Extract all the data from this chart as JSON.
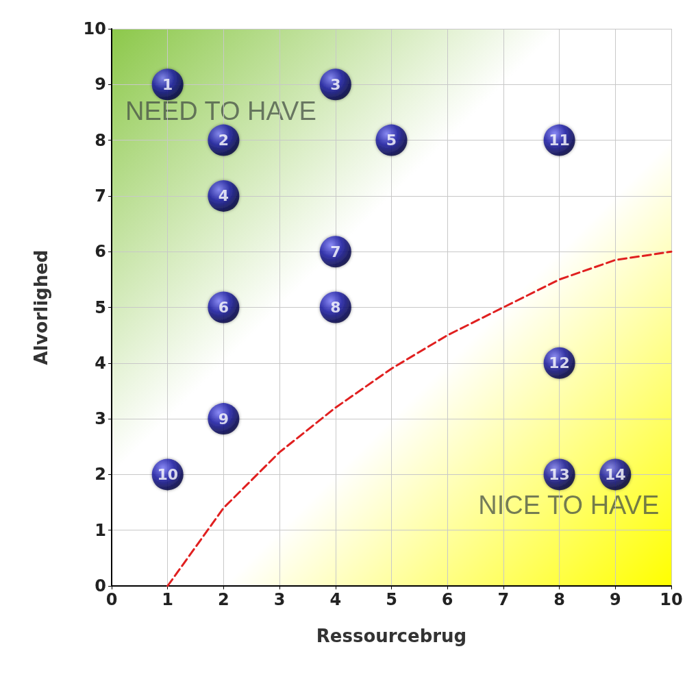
{
  "chart_data": {
    "type": "scatter",
    "xlabel": "Ressourcebrug",
    "ylabel": "Alvorlighed",
    "xlim": [
      0,
      10
    ],
    "ylim": [
      0,
      10
    ],
    "xticks": [
      0,
      1,
      2,
      3,
      4,
      5,
      6,
      7,
      8,
      9,
      10
    ],
    "yticks": [
      0,
      1,
      2,
      3,
      4,
      5,
      6,
      7,
      8,
      9,
      10
    ],
    "grid": true,
    "marker": "circle",
    "annotations": [
      "NEED TO HAVE",
      "NICE TO HAVE",
      {
        "text": "1",
        "x": 1,
        "y": 9
      },
      {
        "text": "2",
        "x": 2,
        "y": 8
      },
      {
        "text": "3",
        "x": 4,
        "y": 9
      },
      {
        "text": "4",
        "x": 2,
        "y": 7
      },
      {
        "text": "5",
        "x": 5,
        "y": 8
      },
      {
        "text": "6",
        "x": 2,
        "y": 5
      },
      {
        "text": "7",
        "x": 4,
        "y": 6
      },
      {
        "text": "8",
        "x": 4,
        "y": 5
      },
      {
        "text": "9",
        "x": 2,
        "y": 3
      },
      {
        "text": "10",
        "x": 1,
        "y": 2
      },
      {
        "text": "11",
        "x": 8,
        "y": 8
      },
      {
        "text": "12",
        "x": 8,
        "y": 4
      },
      {
        "text": "13",
        "x": 8,
        "y": 2
      },
      {
        "text": "14",
        "x": 9,
        "y": 2
      }
    ],
    "series": [
      {
        "color": "#1c1ca8",
        "x": [
          1,
          2,
          4,
          2,
          5,
          2,
          4,
          4,
          2,
          1,
          8,
          8,
          8,
          9
        ],
        "values": [
          9,
          8,
          9,
          7,
          8,
          5,
          6,
          5,
          3,
          2,
          8,
          4,
          2,
          2
        ]
      },
      {
        "type": "line",
        "color": "#e02020",
        "line_style": "dashed",
        "marker": "none",
        "x": [
          1,
          2,
          3,
          4,
          5,
          6,
          7,
          8,
          9,
          10
        ],
        "values": [
          0,
          1.4,
          2.4,
          3.2,
          3.9,
          4.5,
          5.0,
          5.5,
          5.85,
          6
        ]
      }
    ]
  }
}
